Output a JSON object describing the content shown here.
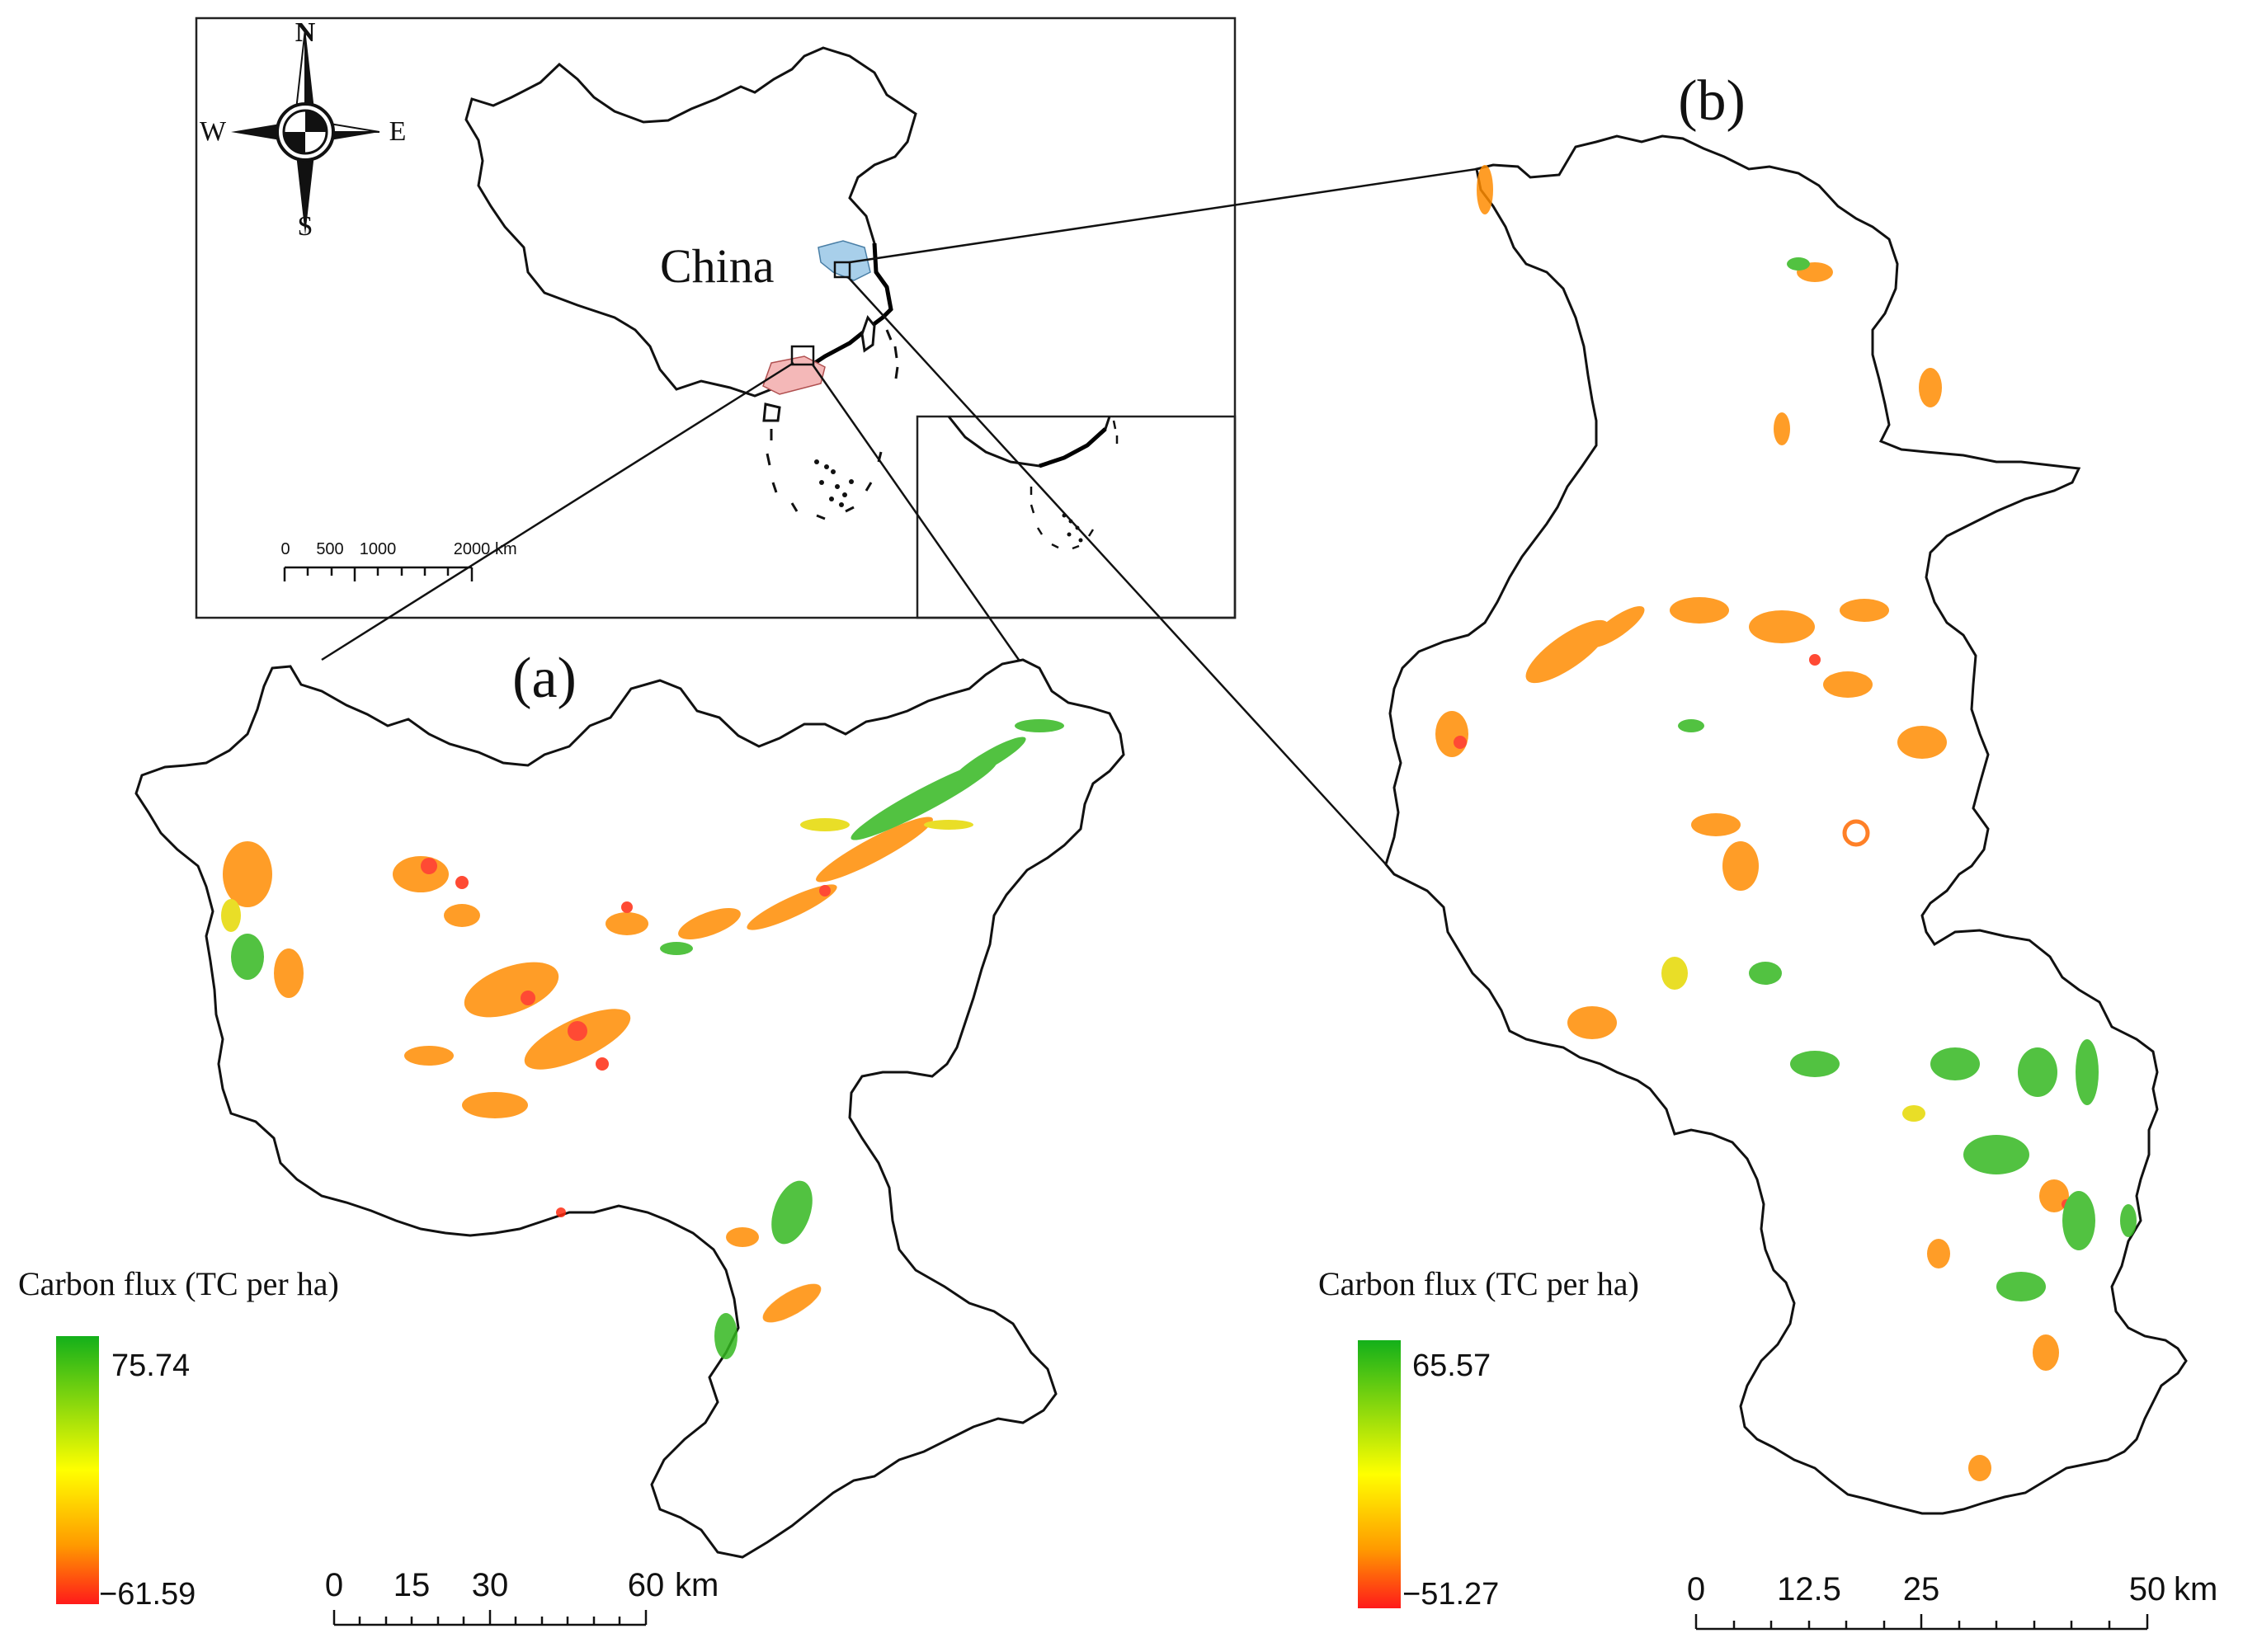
{
  "inset": {
    "country_label": "China",
    "compass": {
      "north": "N",
      "south": "S",
      "east": "E",
      "west": "W"
    },
    "scale_ticks": [
      "0",
      "500",
      "1000",
      "2000"
    ],
    "scale_unit": "km"
  },
  "panel_a": {
    "label": "(a)",
    "legend_title": "Carbon flux (TC per ha)",
    "legend_max": "75.74",
    "legend_min": "−61.59",
    "scale_ticks": [
      "0",
      "15",
      "30",
      "60"
    ],
    "scale_unit": "km"
  },
  "panel_b": {
    "label": "(b)",
    "legend_title": "Carbon flux (TC per ha)",
    "legend_max": "65.57",
    "legend_min": "−51.27",
    "scale_ticks": [
      "0",
      "12.5",
      "25",
      "50"
    ],
    "scale_unit": "km"
  },
  "colors": {
    "gain": "#13b01a",
    "neutral": "#ffff00",
    "loss": "#ff1a1a",
    "mid_loss": "#ff8c00",
    "highlight_a": "#f4b8b8",
    "highlight_b": "#a8cfea"
  }
}
